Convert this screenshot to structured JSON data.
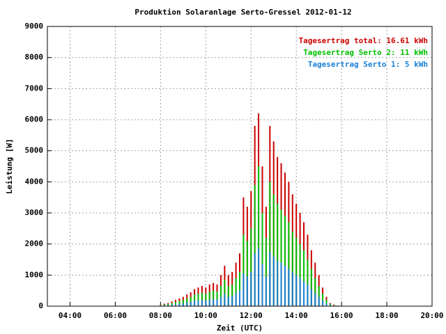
{
  "chart_data": {
    "type": "bar",
    "title": "Produktion Solaranlage Serto-Gressel 2012-01-12",
    "x_label": "Zeit (UTC)",
    "y_label": "Leistung [W]",
    "x": [
      480,
      490,
      500,
      510,
      520,
      530,
      540,
      550,
      560,
      570,
      580,
      590,
      600,
      610,
      620,
      630,
      640,
      650,
      660,
      670,
      680,
      690,
      700,
      710,
      720,
      730,
      740,
      750,
      760,
      770,
      780,
      790,
      800,
      810,
      820,
      830,
      840,
      850,
      860,
      870,
      880,
      890,
      900,
      910,
      920,
      930,
      940,
      950
    ],
    "series": [
      {
        "name": "Tagesertrag total: 16.61 kWh",
        "color": "#cc0000",
        "values": [
          50,
          80,
          100,
          150,
          200,
          250,
          300,
          380,
          450,
          550,
          600,
          650,
          600,
          700,
          750,
          700,
          1000,
          1300,
          1000,
          1100,
          1400,
          1700,
          3500,
          3200,
          3700,
          5800,
          6200,
          4500,
          3200,
          5800,
          5300,
          4800,
          4600,
          4300,
          4000,
          3600,
          3300,
          3000,
          2700,
          2300,
          1800,
          1400,
          1000,
          600,
          300,
          100,
          50,
          20
        ]
      },
      {
        "name": "Tagesertrag Serto 2: 11 kWh",
        "color": "#00c000",
        "values": [
          30,
          50,
          70,
          100,
          130,
          170,
          200,
          250,
          300,
          370,
          400,
          430,
          400,
          470,
          500,
          470,
          650,
          850,
          650,
          700,
          900,
          1100,
          2300,
          2100,
          2500,
          3900,
          4500,
          3000,
          2200,
          4000,
          3600,
          3300,
          3100,
          2900,
          2700,
          2400,
          2200,
          2000,
          1800,
          1500,
          1200,
          900,
          650,
          400,
          200,
          70,
          30,
          10
        ]
      },
      {
        "name": "Tagesertrag Serto 1: 5 kWh",
        "color": "#1a80d8",
        "values": [
          15,
          25,
          30,
          45,
          60,
          75,
          90,
          115,
          135,
          165,
          180,
          195,
          180,
          210,
          225,
          210,
          300,
          390,
          300,
          330,
          420,
          510,
          1050,
          950,
          1100,
          1700,
          1850,
          1350,
          950,
          1750,
          1600,
          1450,
          1400,
          1300,
          1200,
          1100,
          1000,
          900,
          800,
          700,
          550,
          420,
          300,
          180,
          90,
          30,
          15,
          6
        ]
      }
    ],
    "xlim": [
      180,
      1200
    ],
    "xticks": [
      {
        "value": 240,
        "label": "04:00"
      },
      {
        "value": 360,
        "label": "06:00"
      },
      {
        "value": 480,
        "label": "08:00"
      },
      {
        "value": 600,
        "label": "10:00"
      },
      {
        "value": 720,
        "label": "12:00"
      },
      {
        "value": 840,
        "label": "14:00"
      },
      {
        "value": 960,
        "label": "16:00"
      },
      {
        "value": 1080,
        "label": "18:00"
      },
      {
        "value": 1200,
        "label": "20:00"
      }
    ],
    "ylim": [
      0,
      9000
    ],
    "yticks": [
      0,
      1000,
      2000,
      3000,
      4000,
      5000,
      6000,
      7000,
      8000,
      9000
    ],
    "grid": true,
    "legend": "top-right"
  }
}
